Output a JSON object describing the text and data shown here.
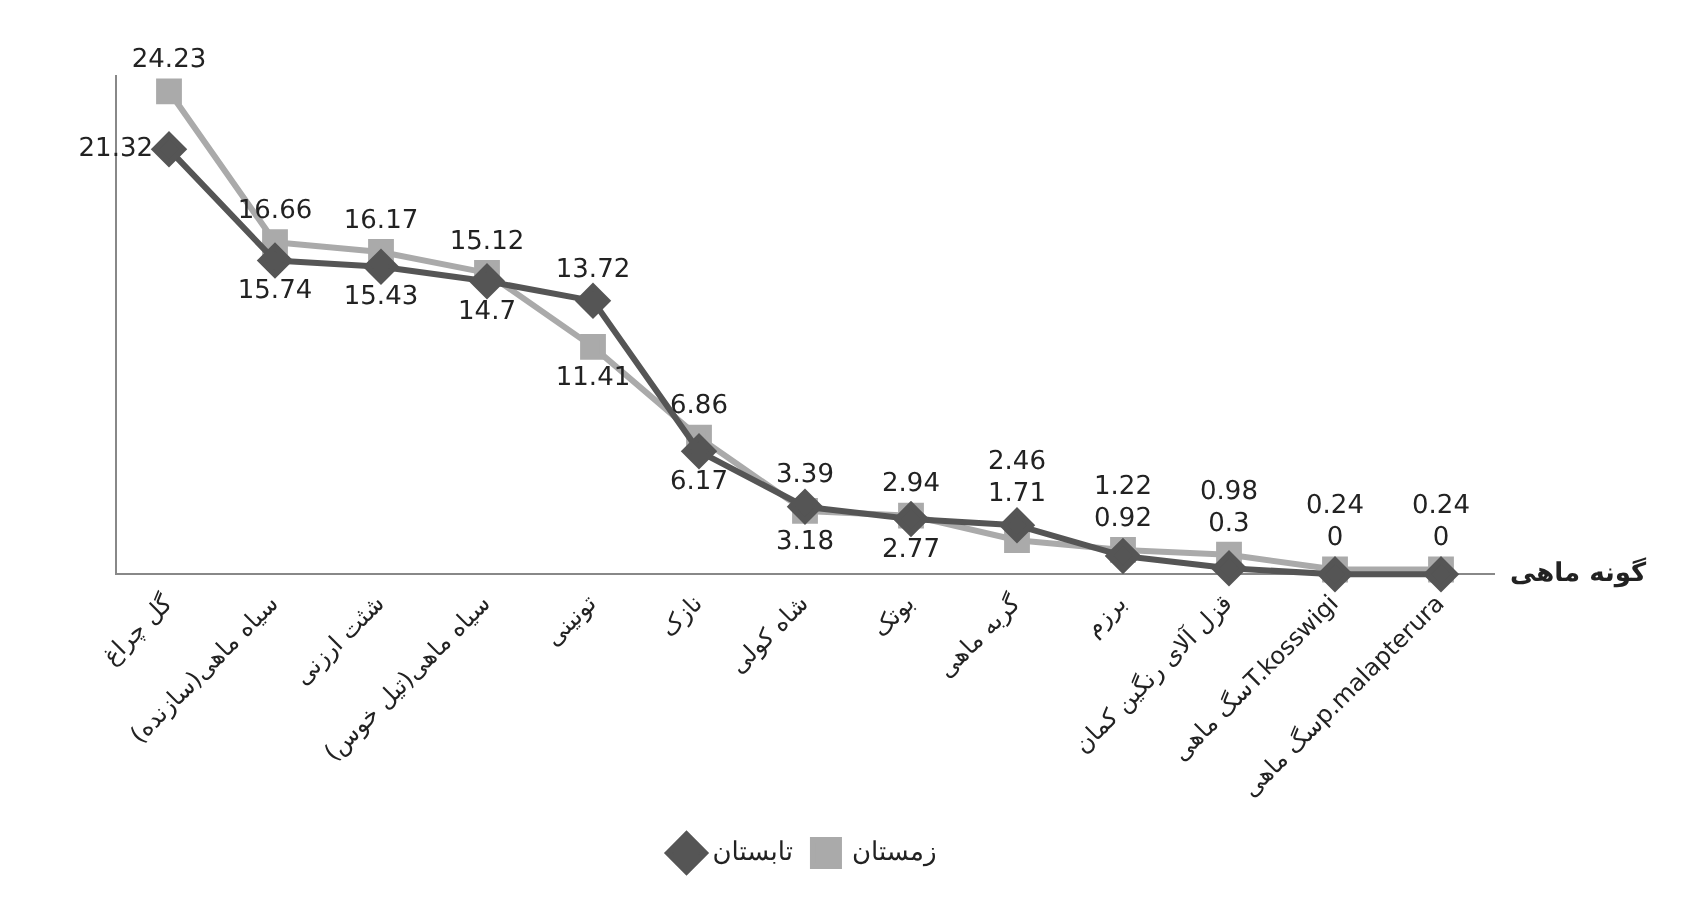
{
  "chart_data": {
    "type": "line",
    "xlabel": "گونه ماهی",
    "categories": [
      "گل چراغ",
      "سیاه ماهی(سازنده)",
      "شثت ارزنی",
      "سیاه ماهی(تیل خوس)",
      "تونینی",
      "نازک",
      "شاه کولی",
      "بوتک",
      "گربه ماهی",
      "برزم",
      "قزل آلای رنگین کمان",
      "سگ ماهیT.kosswigi",
      "سگ ماهیp.malapterura"
    ],
    "series": [
      {
        "name": "تابستان",
        "color": "#555555",
        "marker": "diamond",
        "values": [
          21.32,
          15.74,
          15.43,
          14.7,
          13.72,
          6.17,
          3.39,
          2.77,
          2.46,
          0.92,
          0.3,
          0,
          0
        ]
      },
      {
        "name": "زمستان",
        "color": "#aaaaaa",
        "marker": "square",
        "values": [
          24.23,
          16.66,
          16.17,
          15.12,
          11.41,
          6.86,
          3.18,
          2.94,
          1.71,
          1.22,
          0.98,
          0.24,
          0.24
        ]
      }
    ],
    "data_labels": true,
    "legend": "bottom",
    "grid": false
  }
}
